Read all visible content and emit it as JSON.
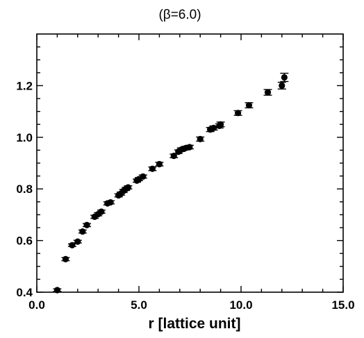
{
  "chart_data": {
    "type": "scatter",
    "title": "(β=6.0)",
    "xlabel": "r [lattice unit]",
    "ylabel": "",
    "xlim": [
      0,
      15
    ],
    "ylim": [
      0.4,
      1.4
    ],
    "grid": false,
    "x_ticks": [
      {
        "value": 0,
        "label": "0.0"
      },
      {
        "value": 5,
        "label": "5.0"
      },
      {
        "value": 10,
        "label": "10.0"
      },
      {
        "value": 15,
        "label": "15.0"
      }
    ],
    "y_ticks": [
      {
        "value": 0.4,
        "label": "0.4"
      },
      {
        "value": 0.6,
        "label": "0.6"
      },
      {
        "value": 0.8,
        "label": "0.8"
      },
      {
        "value": 1.0,
        "label": "1.0"
      },
      {
        "value": 1.2,
        "label": "1.2"
      }
    ],
    "series": [
      {
        "color": "#000000",
        "points": [
          {
            "x": 1.0,
            "y": 0.408,
            "err": 0.005
          },
          {
            "x": 1.41,
            "y": 0.528,
            "err": 0.006
          },
          {
            "x": 1.73,
            "y": 0.582,
            "err": 0.005
          },
          {
            "x": 2.0,
            "y": 0.596,
            "err": 0.005
          },
          {
            "x": 2.24,
            "y": 0.635,
            "err": 0.006
          },
          {
            "x": 2.45,
            "y": 0.66,
            "err": 0.006
          },
          {
            "x": 2.83,
            "y": 0.692,
            "err": 0.006
          },
          {
            "x": 3.0,
            "y": 0.702,
            "err": 0.006
          },
          {
            "x": 3.16,
            "y": 0.712,
            "err": 0.006
          },
          {
            "x": 3.46,
            "y": 0.744,
            "err": 0.006
          },
          {
            "x": 3.61,
            "y": 0.748,
            "err": 0.006
          },
          {
            "x": 4.0,
            "y": 0.775,
            "err": 0.006
          },
          {
            "x": 4.12,
            "y": 0.782,
            "err": 0.006
          },
          {
            "x": 4.24,
            "y": 0.792,
            "err": 0.006
          },
          {
            "x": 4.36,
            "y": 0.8,
            "err": 0.006
          },
          {
            "x": 4.47,
            "y": 0.806,
            "err": 0.006
          },
          {
            "x": 4.9,
            "y": 0.832,
            "err": 0.006
          },
          {
            "x": 5.0,
            "y": 0.838,
            "err": 0.006
          },
          {
            "x": 5.2,
            "y": 0.848,
            "err": 0.006
          },
          {
            "x": 5.66,
            "y": 0.878,
            "err": 0.007
          },
          {
            "x": 6.0,
            "y": 0.896,
            "err": 0.007
          },
          {
            "x": 6.71,
            "y": 0.928,
            "err": 0.007
          },
          {
            "x": 6.93,
            "y": 0.944,
            "err": 0.007
          },
          {
            "x": 7.07,
            "y": 0.952,
            "err": 0.007
          },
          {
            "x": 7.28,
            "y": 0.958,
            "err": 0.007
          },
          {
            "x": 7.48,
            "y": 0.962,
            "err": 0.007
          },
          {
            "x": 8.0,
            "y": 0.993,
            "err": 0.008
          },
          {
            "x": 8.49,
            "y": 1.03,
            "err": 0.008
          },
          {
            "x": 8.66,
            "y": 1.036,
            "err": 0.008
          },
          {
            "x": 8.94,
            "y": 1.044,
            "err": 0.008
          },
          {
            "x": 9.0,
            "y": 1.05,
            "err": 0.009
          },
          {
            "x": 9.85,
            "y": 1.094,
            "err": 0.009
          },
          {
            "x": 10.39,
            "y": 1.124,
            "err": 0.01
          },
          {
            "x": 11.31,
            "y": 1.174,
            "err": 0.011
          },
          {
            "x": 12.0,
            "y": 1.2,
            "err": 0.013
          },
          {
            "x": 12.12,
            "y": 1.232,
            "err": 0.016
          }
        ]
      }
    ]
  }
}
